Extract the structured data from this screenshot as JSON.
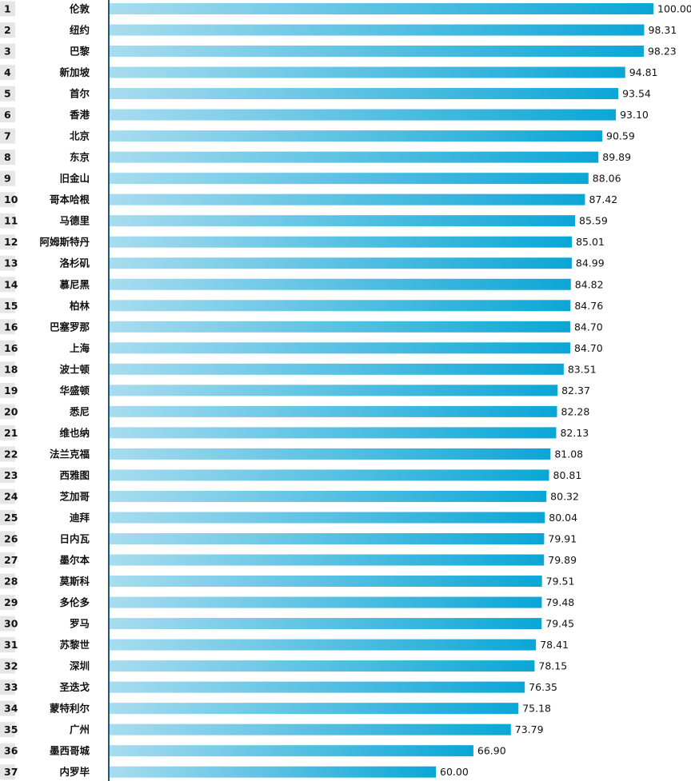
{
  "chart_data": {
    "type": "bar",
    "orientation": "horizontal",
    "title": "",
    "xlabel": "",
    "ylabel": "",
    "xlim": [
      0,
      100
    ],
    "colors": {
      "bar_start": "#a8dcef",
      "bar_end": "#0ba6d6",
      "axis": "#1a5a78",
      "rank_bg": "#e6e6e6"
    },
    "ranks": [
      "1",
      "2",
      "3",
      "4",
      "5",
      "6",
      "7",
      "8",
      "9",
      "10",
      "11",
      "12",
      "13",
      "14",
      "15",
      "16",
      "16",
      "18",
      "19",
      "20",
      "21",
      "22",
      "23",
      "24",
      "25",
      "26",
      "27",
      "28",
      "29",
      "30",
      "31",
      "32",
      "33",
      "34",
      "35",
      "36",
      "37"
    ],
    "categories": [
      "伦敦",
      "纽约",
      "巴黎",
      "新加坡",
      "首尔",
      "香港",
      "北京",
      "东京",
      "旧金山",
      "哥本哈根",
      "马德里",
      "阿姆斯特丹",
      "洛杉矶",
      "慕尼黑",
      "柏林",
      "巴塞罗那",
      "上海",
      "波士顿",
      "华盛顿",
      "悉尼",
      "维也纳",
      "法兰克福",
      "西雅图",
      "芝加哥",
      "迪拜",
      "日内瓦",
      "墨尔本",
      "莫斯科",
      "多伦多",
      "罗马",
      "苏黎世",
      "深圳",
      "圣迭戈",
      "蒙特利尔",
      "广州",
      "墨西哥城",
      "内罗毕"
    ],
    "values": [
      100.0,
      98.31,
      98.23,
      94.81,
      93.54,
      93.1,
      90.59,
      89.89,
      88.06,
      87.42,
      85.59,
      85.01,
      84.99,
      84.82,
      84.76,
      84.7,
      84.7,
      83.51,
      82.37,
      82.28,
      82.13,
      81.08,
      80.81,
      80.32,
      80.04,
      79.91,
      79.89,
      79.51,
      79.48,
      79.45,
      78.41,
      78.15,
      76.35,
      75.18,
      73.79,
      66.9,
      60.0
    ],
    "value_labels": [
      "100.00",
      "98.31",
      "98.23",
      "94.81",
      "93.54",
      "93.10",
      "90.59",
      "89.89",
      "88.06",
      "87.42",
      "85.59",
      "85.01",
      "84.99",
      "84.82",
      "84.76",
      "84.70",
      "84.70",
      "83.51",
      "82.37",
      "82.28",
      "82.13",
      "81.08",
      "80.81",
      "80.32",
      "80.04",
      "79.91",
      "79.89",
      "79.51",
      "79.48",
      "79.45",
      "78.41",
      "78.15",
      "76.35",
      "75.18",
      "73.79",
      "66.90",
      "60.00"
    ]
  }
}
